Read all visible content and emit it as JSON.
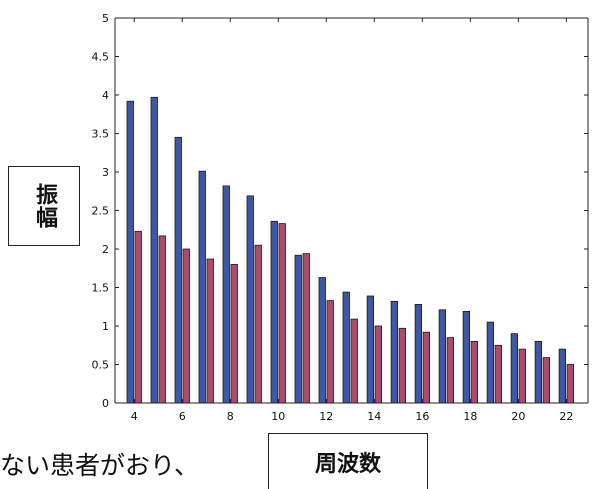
{
  "chart_data": {
    "type": "bar",
    "title": "",
    "xlabel": "周波数",
    "ylabel": "振幅",
    "ylim": [
      0,
      5
    ],
    "yticks": [
      "0",
      "0.5",
      "1",
      "1.5",
      "2",
      "2.5",
      "3",
      "3.5",
      "4",
      "4.5",
      "5"
    ],
    "xticks": [
      "4",
      "6",
      "8",
      "10",
      "12",
      "14",
      "16",
      "18",
      "20",
      "22"
    ],
    "categories": [
      4,
      5,
      6,
      7,
      8,
      9,
      10,
      11,
      12,
      13,
      14,
      15,
      16,
      17,
      18,
      19,
      20,
      21,
      22
    ],
    "series": [
      {
        "color": "#3f57a6",
        "values": [
          3.92,
          3.97,
          3.45,
          3.01,
          2.82,
          2.69,
          2.36,
          1.92,
          1.63,
          1.44,
          1.39,
          1.32,
          1.28,
          1.21,
          1.19,
          1.05,
          0.9,
          0.8,
          0.7
        ]
      },
      {
        "color": "#b04a6c",
        "values": [
          2.23,
          2.17,
          2.0,
          1.87,
          1.8,
          2.05,
          2.33,
          1.94,
          1.33,
          1.09,
          1.0,
          0.97,
          0.92,
          0.85,
          0.8,
          0.75,
          0.7,
          0.59,
          0.5
        ]
      }
    ],
    "grid": false,
    "legend": "none"
  },
  "body_text": "ない患者がおり、"
}
